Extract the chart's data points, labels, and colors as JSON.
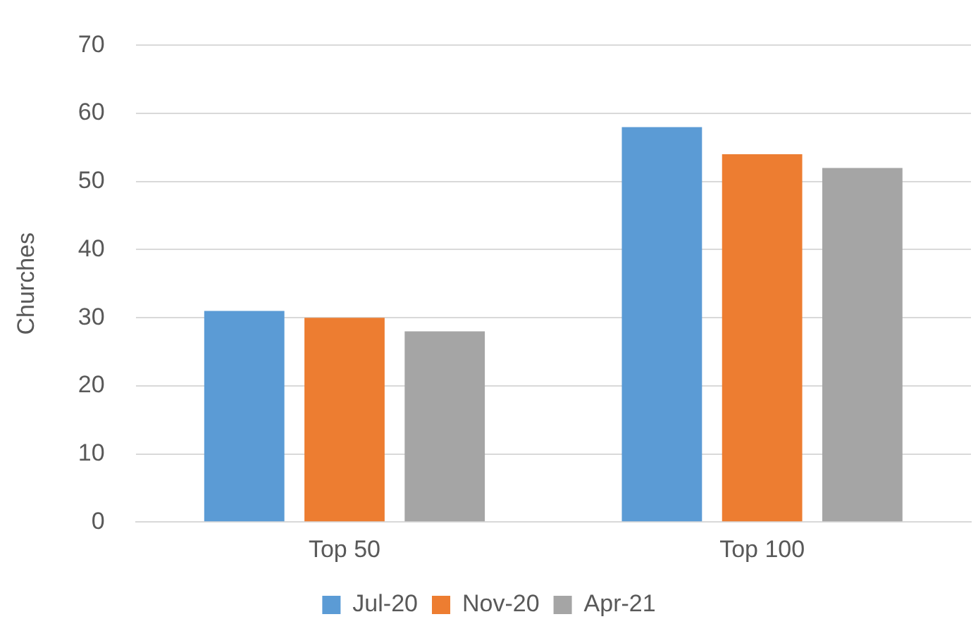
{
  "chart_data": {
    "type": "bar",
    "ylabel": "Churches",
    "categories": [
      "Top 50",
      "Top 100"
    ],
    "series": [
      {
        "name": "Jul-20",
        "color": "#5b9bd5",
        "values": [
          31,
          58
        ]
      },
      {
        "name": "Nov-20",
        "color": "#ed7d31",
        "values": [
          30,
          54
        ]
      },
      {
        "name": "Apr-21",
        "color": "#a5a5a5",
        "values": [
          28,
          52
        ]
      }
    ],
    "ylim": [
      0,
      70
    ],
    "yticks": [
      0,
      10,
      20,
      30,
      40,
      50,
      60,
      70
    ],
    "grid": "y",
    "legend": "bottom"
  }
}
